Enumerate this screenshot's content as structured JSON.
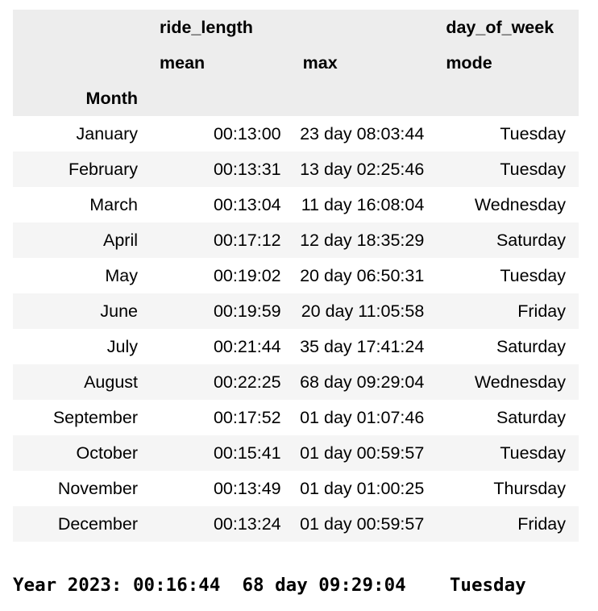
{
  "table": {
    "header": {
      "group_ride_length": "ride_length",
      "group_day_of_week": "day_of_week",
      "col_mean": "mean",
      "col_max": "max",
      "col_mode": "mode",
      "index_name": "Month"
    },
    "rows": [
      {
        "month": "January",
        "mean": "00:13:00",
        "max": "23 day 08:03:44",
        "mode": "Tuesday"
      },
      {
        "month": "February",
        "mean": "00:13:31",
        "max": "13 day 02:25:46",
        "mode": "Tuesday"
      },
      {
        "month": "March",
        "mean": "00:13:04",
        "max": "11 day 16:08:04",
        "mode": "Wednesday"
      },
      {
        "month": "April",
        "mean": "00:17:12",
        "max": "12 day 18:35:29",
        "mode": "Saturday"
      },
      {
        "month": "May",
        "mean": "00:19:02",
        "max": "20 day 06:50:31",
        "mode": "Tuesday"
      },
      {
        "month": "June",
        "mean": "00:19:59",
        "max": "20 day 11:05:58",
        "mode": "Friday"
      },
      {
        "month": "July",
        "mean": "00:21:44",
        "max": "35 day 17:41:24",
        "mode": "Saturday"
      },
      {
        "month": "August",
        "mean": "00:22:25",
        "max": "68 day 09:29:04",
        "mode": "Wednesday"
      },
      {
        "month": "September",
        "mean": "00:17:52",
        "max": "01 day 01:07:46",
        "mode": "Saturday"
      },
      {
        "month": "October",
        "mean": "00:15:41",
        "max": "01 day 00:59:57",
        "mode": "Tuesday"
      },
      {
        "month": "November",
        "mean": "00:13:49",
        "max": "01 day 01:00:25",
        "mode": "Thursday"
      },
      {
        "month": "December",
        "mean": "00:13:24",
        "max": "01 day 00:59:57",
        "mode": "Friday"
      }
    ]
  },
  "summary": {
    "text": "Year 2023: 00:16:44  68 day 09:29:04    Tuesday"
  }
}
